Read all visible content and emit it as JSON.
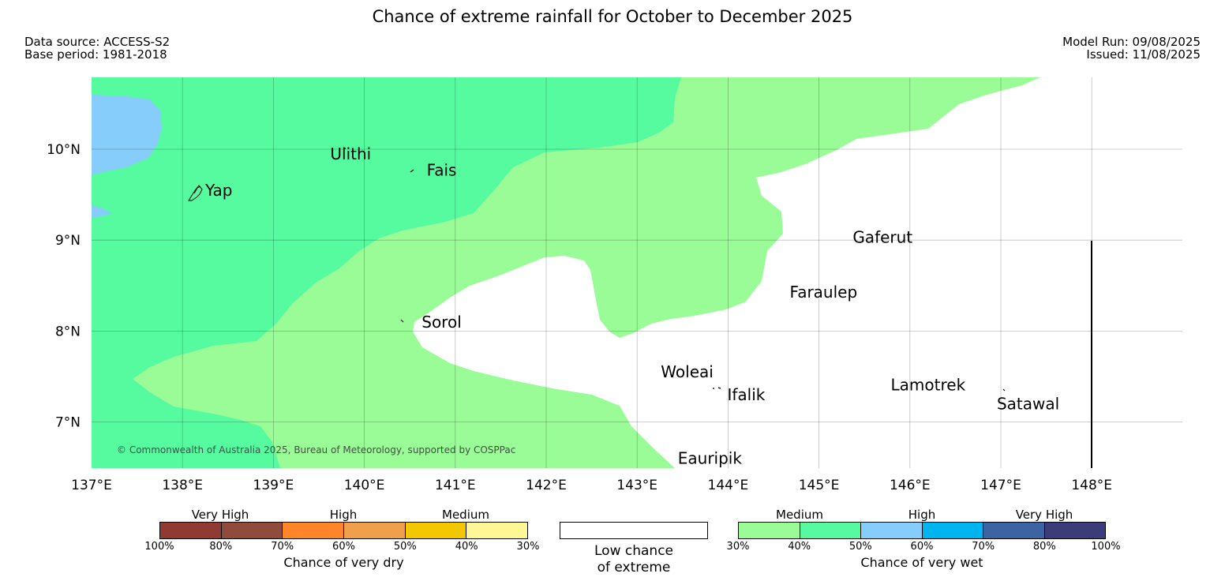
{
  "title": "Chance of extreme rainfall for October to December 2025",
  "data_source": "Data source: ACCESS-S2",
  "base_period": "Base period: 1981-2018",
  "model_run": "Model Run: 09/08/2025",
  "issued": "Issued: 11/08/2025",
  "copyright": "© Commonwealth of Australia 2025, Bureau of Meteorology, supported by COSPPac",
  "map": {
    "lon_range": [
      137,
      149
    ],
    "lat_range": [
      6.5,
      10.8
    ],
    "grid": true,
    "lon_ticks": [
      "137°E",
      "138°E",
      "139°E",
      "140°E",
      "141°E",
      "142°E",
      "143°E",
      "144°E",
      "145°E",
      "146°E",
      "147°E",
      "148°E"
    ],
    "lat_ticks": [
      "10°N",
      "9°N",
      "8°N",
      "7°N"
    ],
    "places": [
      {
        "name": "Ulithi",
        "lon": 139.85,
        "lat": 9.95
      },
      {
        "name": "Fais",
        "lon": 140.85,
        "lat": 9.77
      },
      {
        "name": "Yap",
        "lon": 138.4,
        "lat": 9.55
      },
      {
        "name": "Gaferut",
        "lon": 145.7,
        "lat": 9.03
      },
      {
        "name": "Faraulep",
        "lon": 145.05,
        "lat": 8.43
      },
      {
        "name": "Sorol",
        "lon": 140.85,
        "lat": 8.1
      },
      {
        "name": "Woleai",
        "lon": 143.55,
        "lat": 7.55
      },
      {
        "name": "Ifalik",
        "lon": 144.2,
        "lat": 7.3
      },
      {
        "name": "Lamotrek",
        "lon": 146.2,
        "lat": 7.41
      },
      {
        "name": "Satawal",
        "lon": 147.3,
        "lat": 7.2
      },
      {
        "name": "Eauripik",
        "lon": 143.8,
        "lat": 6.6
      }
    ],
    "colors": {
      "wet_30_40": "#9afc96",
      "wet_40_50": "#56fba0",
      "wet_50_60": "#87cdfb",
      "land": "#000000"
    }
  },
  "legend_dry": {
    "title": "Chance of very dry",
    "categories": [
      "Very High",
      "High",
      "Medium"
    ],
    "ticks": [
      "100%",
      "80%",
      "70%",
      "60%",
      "50%",
      "40%",
      "30%"
    ],
    "colors": [
      "#8f3a32",
      "#8f4c3a",
      "#ff8527",
      "#f0a04a",
      "#f2c800",
      "#fff796"
    ]
  },
  "legend_low": {
    "line1": "Low chance",
    "line2": "of extreme"
  },
  "legend_wet": {
    "title": "Chance of very wet",
    "categories": [
      "Medium",
      "High",
      "Very High"
    ],
    "ticks": [
      "30%",
      "40%",
      "50%",
      "60%",
      "70%",
      "80%",
      "100%"
    ],
    "colors": [
      "#9afc96",
      "#56fba0",
      "#87cdfb",
      "#00b4f0",
      "#3c64a0",
      "#3c3c7a"
    ]
  }
}
